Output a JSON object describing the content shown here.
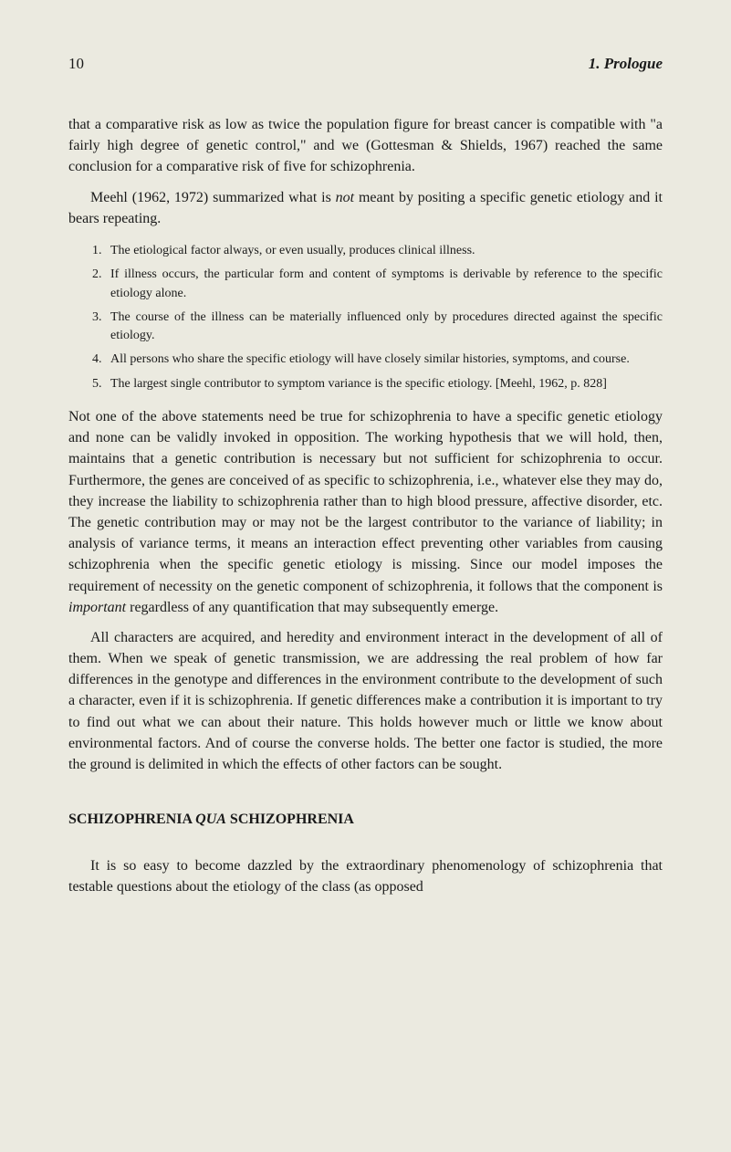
{
  "header": {
    "page_number": "10",
    "chapter_title": "1. Prologue"
  },
  "paragraphs": {
    "p1": "that a comparative risk as low as twice the population figure for breast cancer is compatible with \"a fairly high degree of genetic control,\" and we (Gottesman & Shields, 1967) reached the same conclusion for a comparative risk of five for schizophrenia.",
    "p2_a": "Meehl (1962, 1972) summarized what is ",
    "p2_not": "not",
    "p2_b": " meant by positing a specific genetic etiology and it bears repeating.",
    "p3": "Not one of the above statements need be true for schizophrenia to have a specific genetic etiology and none can be validly invoked in opposition. The working hypothesis that we will hold, then, maintains that a genetic contribution is necessary but not sufficient for schizophrenia to occur. Furthermore, the genes are conceived of as specific to schizophrenia, i.e., whatever else they may do, they increase the liability to schizophrenia rather than to high blood pressure, affective disorder, etc. The genetic contribution may or may not be the largest contributor to the variance of liability; in analysis of variance terms, it means an interaction effect preventing other variables from causing schizophrenia when the specific genetic etiology is missing. Since our model imposes the requirement of necessity on the genetic component of schizophrenia, it follows that the component is ",
    "p3_important": "important",
    "p3_b": " regardless of any quantification that may subsequently emerge.",
    "p4": "All characters are acquired, and heredity and environment interact in the development of all of them. When we speak of genetic transmission, we are addressing the real problem of how far differences in the genotype and differences in the environment contribute to the development of such a character, even if it is schizophrenia. If genetic differences make a contribution it is important to try to find out what we can about their nature. This holds however much or little we know about environmental factors. And of course the converse holds. The better one factor is studied, the more the ground is delimited in which the effects of other factors can be sought.",
    "p5": "It is so easy to become dazzled by the extraordinary phenomenology of schizophrenia that testable questions about the etiology of the class (as opposed"
  },
  "list": {
    "item1_num": "1.",
    "item1": "The etiological factor always, or even usually, produces clinical illness.",
    "item2_num": "2.",
    "item2": "If illness occurs, the particular form and content of symptoms is derivable by reference to the specific etiology alone.",
    "item3_num": "3.",
    "item3": "The course of the illness can be materially influenced only by procedures directed against the specific etiology.",
    "item4_num": "4.",
    "item4": "All persons who share the specific etiology will have closely similar histories, symptoms, and course.",
    "item5_num": "5.",
    "item5": "The largest single contributor to symptom variance is the specific etiology. [Meehl, 1962, p. 828]"
  },
  "section_heading_a": "SCHIZOPHRENIA ",
  "section_heading_qua": "QUA",
  "section_heading_b": " SCHIZOPHRENIA"
}
